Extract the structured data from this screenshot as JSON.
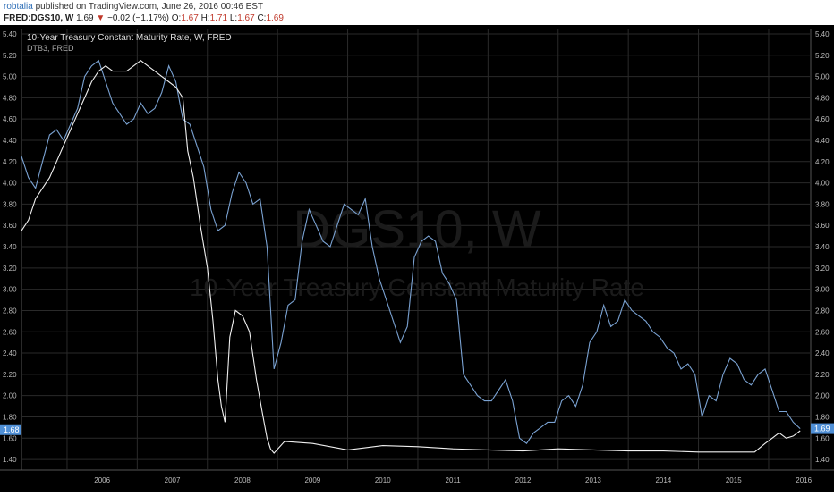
{
  "header": {
    "user": "robtalia",
    "published": "published on TradingView.com, June 26, 2016 00:46 EST",
    "symbol": "FRED:DGS10, W",
    "last": "1.69",
    "change": "−0.02 (−1.17%)",
    "o_label": "O:",
    "o_val": "1.67",
    "h_label": "H:",
    "h_val": "1.71",
    "l_label": "L:",
    "l_val": "1.67",
    "c_label": "C:",
    "c_val": "1.69"
  },
  "chart_labels": {
    "legend_main": "10-Year Treasury Constant Maturity Rate, W, FRED",
    "legend_secondary": "DTB3, FRED",
    "watermark_symbol": "DGS10, W",
    "watermark_name": "10-Year Treasury Constant Maturity Rate",
    "left_price_tag": "1.68",
    "right_price_tag": "1.69"
  },
  "colors": {
    "dgs10": "#7aa2d2",
    "dtb3": "#f0f0f0",
    "price_tag": "#4f8fd6",
    "grid": "#2a2a2a",
    "axis_text": "#bbbbbb"
  },
  "chart_data": {
    "type": "line",
    "ylim": [
      1.3,
      5.45
    ],
    "xlim": [
      2005.35,
      2016.6
    ],
    "yticks": [
      "1.40",
      "1.60",
      "1.80",
      "2.00",
      "2.20",
      "2.40",
      "2.60",
      "2.80",
      "3.00",
      "3.20",
      "3.40",
      "3.60",
      "3.80",
      "4.00",
      "4.20",
      "4.40",
      "4.60",
      "4.80",
      "5.00",
      "5.20",
      "5.40"
    ],
    "xticks": [
      "2006",
      "2007",
      "2008",
      "2009",
      "2010",
      "2011",
      "2012",
      "2013",
      "2014",
      "2015",
      "2016"
    ],
    "grid": true,
    "series": [
      {
        "name": "10-Year Treasury Constant Maturity Rate, W, FRED",
        "x": [
          2005.35,
          2005.45,
          2005.55,
          2005.65,
          2005.75,
          2005.85,
          2005.95,
          2006.05,
          2006.15,
          2006.25,
          2006.35,
          2006.45,
          2006.55,
          2006.65,
          2006.75,
          2006.85,
          2006.95,
          2007.05,
          2007.15,
          2007.25,
          2007.35,
          2007.45,
          2007.55,
          2007.65,
          2007.75,
          2007.85,
          2007.95,
          2008.05,
          2008.15,
          2008.25,
          2008.35,
          2008.45,
          2008.55,
          2008.65,
          2008.75,
          2008.85,
          2008.95,
          2009.05,
          2009.15,
          2009.25,
          2009.35,
          2009.45,
          2009.55,
          2009.65,
          2009.75,
          2009.85,
          2009.95,
          2010.05,
          2010.15,
          2010.25,
          2010.35,
          2010.45,
          2010.55,
          2010.65,
          2010.75,
          2010.85,
          2010.95,
          2011.05,
          2011.15,
          2011.25,
          2011.35,
          2011.45,
          2011.55,
          2011.65,
          2011.75,
          2011.85,
          2011.95,
          2012.05,
          2012.15,
          2012.25,
          2012.35,
          2012.45,
          2012.55,
          2012.65,
          2012.75,
          2012.85,
          2012.95,
          2013.05,
          2013.15,
          2013.25,
          2013.35,
          2013.45,
          2013.55,
          2013.65,
          2013.75,
          2013.85,
          2013.95,
          2014.05,
          2014.15,
          2014.25,
          2014.35,
          2014.45,
          2014.55,
          2014.65,
          2014.75,
          2014.85,
          2014.95,
          2015.05,
          2015.15,
          2015.25,
          2015.35,
          2015.45,
          2015.55,
          2015.65,
          2015.75,
          2015.85,
          2015.95,
          2016.05,
          2016.15,
          2016.25,
          2016.35,
          2016.45
        ],
        "values": [
          4.25,
          4.05,
          3.95,
          4.2,
          4.45,
          4.5,
          4.4,
          4.55,
          4.7,
          5.0,
          5.1,
          5.15,
          4.95,
          4.75,
          4.65,
          4.55,
          4.6,
          4.75,
          4.65,
          4.7,
          4.85,
          5.1,
          4.95,
          4.6,
          4.55,
          4.35,
          4.15,
          3.75,
          3.55,
          3.6,
          3.9,
          4.1,
          4.0,
          3.8,
          3.85,
          3.4,
          2.25,
          2.5,
          2.85,
          2.9,
          3.45,
          3.75,
          3.6,
          3.45,
          3.4,
          3.6,
          3.8,
          3.75,
          3.7,
          3.85,
          3.4,
          3.1,
          2.9,
          2.7,
          2.5,
          2.65,
          3.3,
          3.45,
          3.5,
          3.45,
          3.15,
          3.05,
          2.9,
          2.2,
          2.1,
          2.0,
          1.95,
          1.95,
          2.05,
          2.15,
          1.95,
          1.6,
          1.55,
          1.65,
          1.7,
          1.75,
          1.75,
          1.95,
          2.0,
          1.9,
          2.1,
          2.5,
          2.6,
          2.85,
          2.65,
          2.7,
          2.9,
          2.8,
          2.75,
          2.7,
          2.6,
          2.55,
          2.45,
          2.4,
          2.25,
          2.3,
          2.2,
          1.8,
          2.0,
          1.95,
          2.2,
          2.35,
          2.3,
          2.15,
          2.1,
          2.2,
          2.25,
          2.05,
          1.85,
          1.85,
          1.75,
          1.69
        ]
      },
      {
        "name": "DTB3, FRED",
        "x": [
          2005.35,
          2005.45,
          2005.55,
          2005.65,
          2005.75,
          2005.85,
          2005.95,
          2006.05,
          2006.15,
          2006.25,
          2006.35,
          2006.45,
          2006.55,
          2006.65,
          2006.75,
          2006.85,
          2006.95,
          2007.05,
          2007.15,
          2007.25,
          2007.35,
          2007.45,
          2007.55,
          2007.65,
          2007.72,
          2007.8,
          2007.9,
          2008.0,
          2008.08,
          2008.15,
          2008.2,
          2008.25,
          2008.32,
          2008.4,
          2008.5,
          2008.6,
          2008.7,
          2008.78,
          2008.85,
          2008.9,
          2008.95,
          2009.1,
          2009.5,
          2010.0,
          2010.5,
          2011.0,
          2011.5,
          2012.0,
          2012.5,
          2013.0,
          2013.5,
          2014.0,
          2014.5,
          2015.0,
          2015.5,
          2015.8,
          2015.95,
          2016.05,
          2016.15,
          2016.25,
          2016.35,
          2016.45
        ],
        "values": [
          3.55,
          3.65,
          3.85,
          3.95,
          4.05,
          4.2,
          4.35,
          4.5,
          4.65,
          4.8,
          4.95,
          5.05,
          5.1,
          5.05,
          5.05,
          5.05,
          5.1,
          5.15,
          5.1,
          5.05,
          5.0,
          4.95,
          4.9,
          4.8,
          4.3,
          4.05,
          3.6,
          3.2,
          2.7,
          2.15,
          1.9,
          1.75,
          2.55,
          2.8,
          2.75,
          2.6,
          2.15,
          1.85,
          1.6,
          1.5,
          1.46,
          1.57,
          1.55,
          1.49,
          1.53,
          1.52,
          1.5,
          1.49,
          1.48,
          1.5,
          1.49,
          1.48,
          1.48,
          1.47,
          1.47,
          1.47,
          1.55,
          1.6,
          1.65,
          1.6,
          1.62,
          1.67
        ]
      }
    ]
  }
}
